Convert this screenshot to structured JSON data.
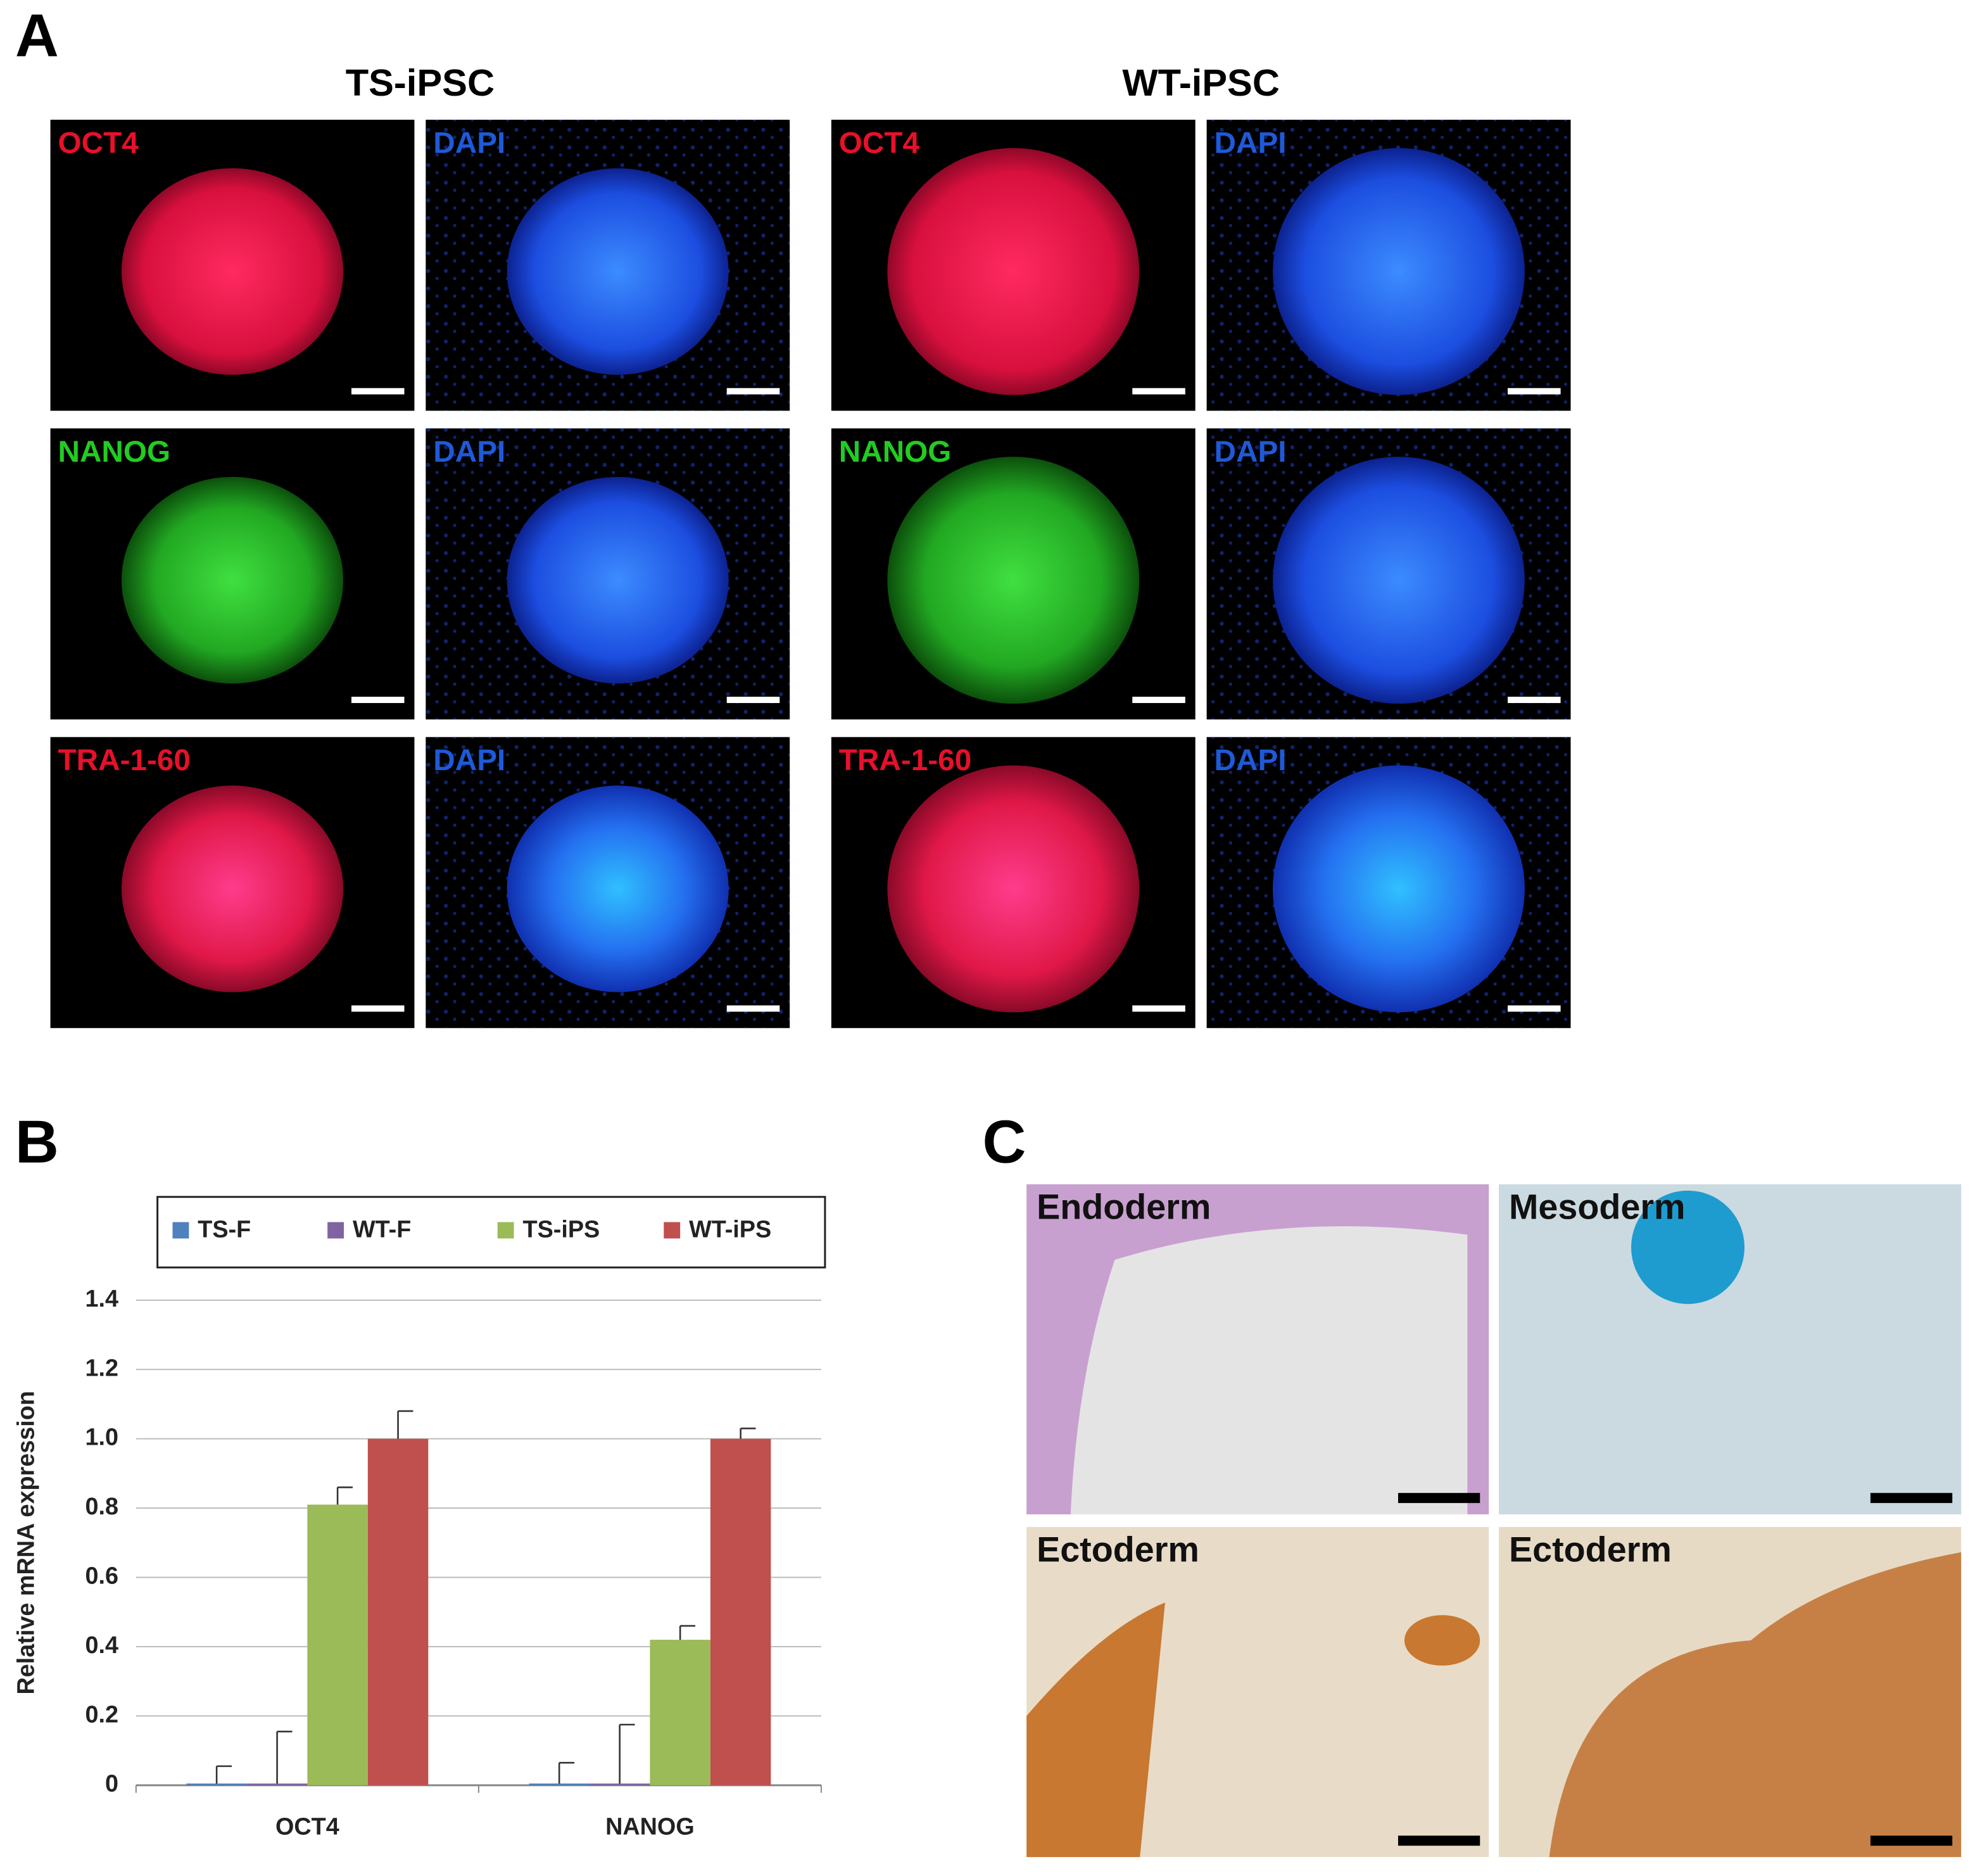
{
  "panel_labels": [
    "A",
    "B",
    "C"
  ],
  "panel_a": {
    "groups": [
      {
        "title": "TS-iPSC",
        "rows": [
          [
            "OCT4",
            "DAPI"
          ],
          [
            "NANOG",
            "DAPI"
          ],
          [
            "TRA-1-60",
            "DAPI"
          ]
        ]
      },
      {
        "title": "WT-iPSC",
        "rows": [
          [
            "OCT4",
            "DAPI"
          ],
          [
            "NANOG",
            "DAPI"
          ],
          [
            "TRA-1-60",
            "DAPI"
          ]
        ]
      }
    ]
  },
  "chart_data": {
    "type": "bar",
    "categories": [
      "OCT4",
      "NANOG"
    ],
    "ylabel": "Relative mRNA expression",
    "series": [
      {
        "name": "TS-F",
        "color": "#4f81bd",
        "values": [
          0.005,
          0.005
        ],
        "errors": [
          0.05,
          0.06
        ]
      },
      {
        "name": "WT-F",
        "color": "#8064a2",
        "values": [
          0.005,
          0.005
        ],
        "errors": [
          0.15,
          0.17
        ]
      },
      {
        "name": "TS-iPS",
        "color": "#9bbb59",
        "values": [
          0.81,
          0.42
        ],
        "errors": [
          0.05,
          0.04
        ]
      },
      {
        "name": "WT-iPS",
        "color": "#c0504d",
        "values": [
          1,
          1
        ],
        "errors": [
          0.08,
          0.03
        ]
      }
    ],
    "ylim": [
      0,
      1.4
    ],
    "yticks": [
      0,
      0.2,
      0.4,
      0.6,
      0.8,
      {
        "value": 1,
        "label": "1.0"
      },
      1.2,
      1.4
    ],
    "grid": true,
    "legend": "top"
  },
  "panel_c": {
    "images": [
      "Endoderm",
      "Mesoderm",
      "Ectoderm",
      "Ectoderm"
    ]
  }
}
